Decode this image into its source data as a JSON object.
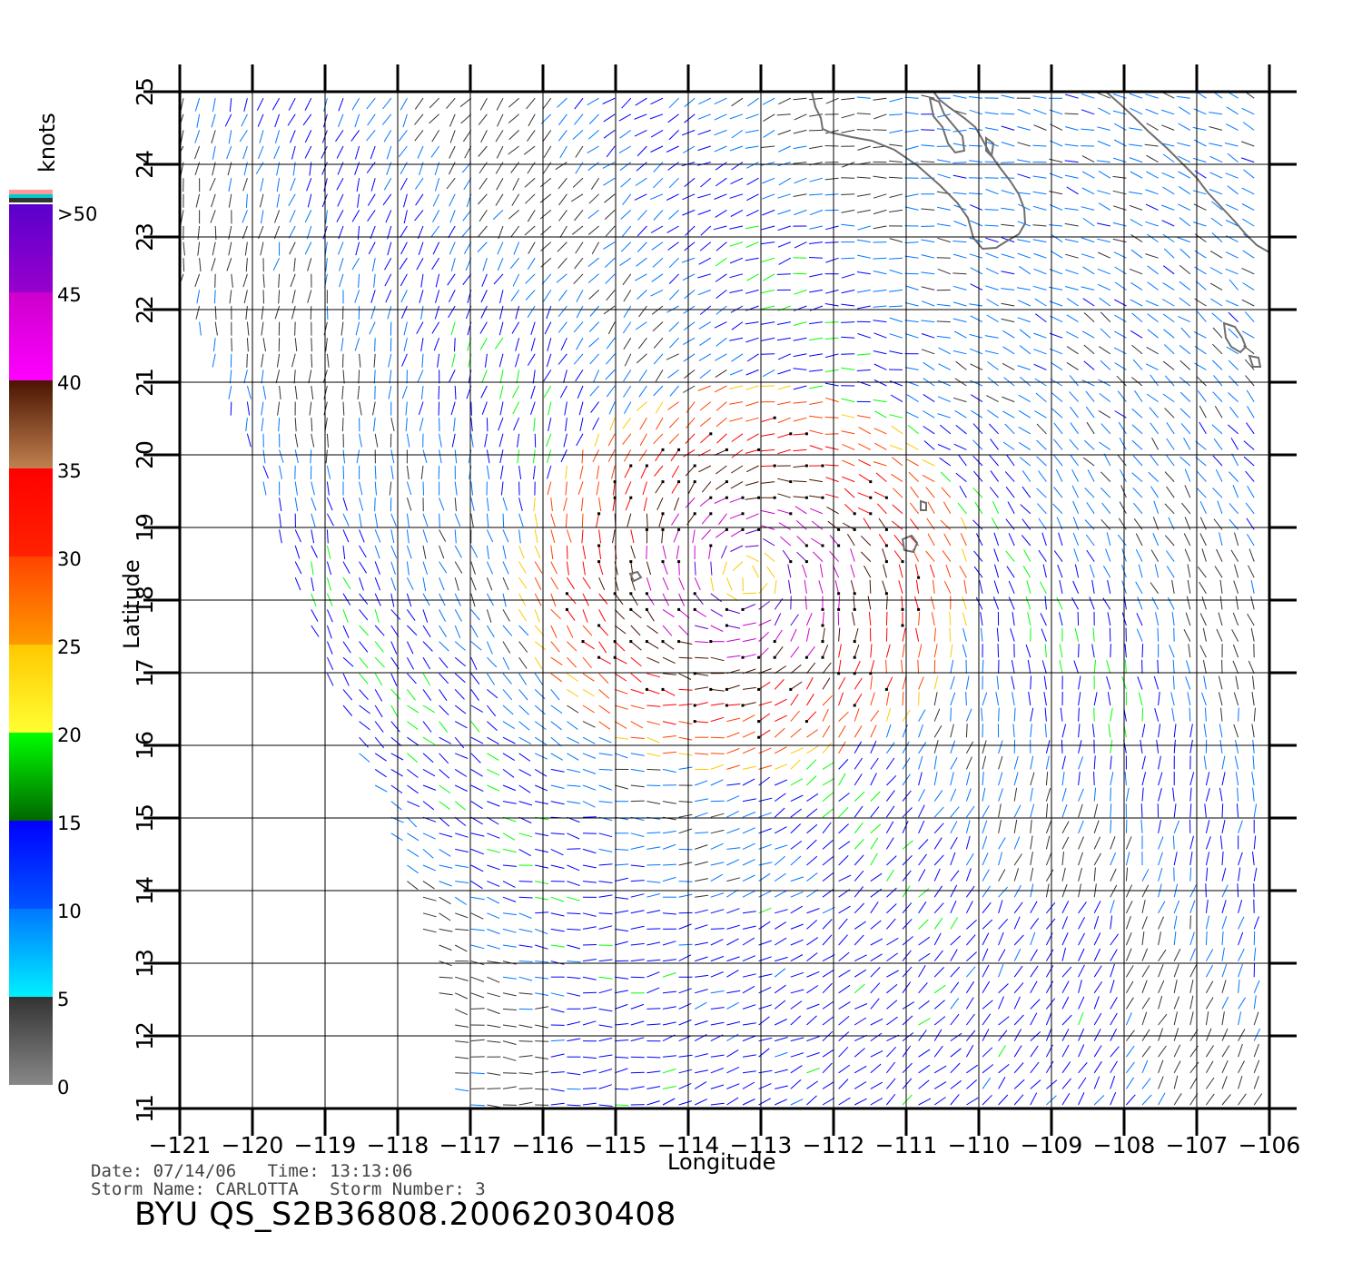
{
  "map": {
    "x_axis_title": "Longitude",
    "y_axis_title": "Latitude",
    "lon_range": [
      -121,
      -106
    ],
    "lat_range": [
      11,
      25
    ],
    "lon_ticks": [
      "−121",
      "−120",
      "−119",
      "−118",
      "−117",
      "−116",
      "−115",
      "−114",
      "−113",
      "−112",
      "−111",
      "−110",
      "−109",
      "−108",
      "−107",
      "−106"
    ],
    "lat_ticks": [
      "11",
      "12",
      "13",
      "14",
      "15",
      "16",
      "17",
      "18",
      "19",
      "20",
      "21",
      "22",
      "23",
      "24",
      "25"
    ],
    "coastline_color": "#6e6e6e",
    "grid_color": "#000000",
    "swath_west_edge": [
      [
        -121,
        22.5
      ],
      [
        -120,
        20
      ],
      [
        -119,
        17
      ],
      [
        -118,
        14.5
      ],
      [
        -117.5,
        13
      ],
      [
        -117.2,
        11
      ]
    ],
    "storm_center": [
      -113.2,
      18.3
    ],
    "vector_field_description_hidden": false
  },
  "color_scale": {
    "unit": "knots",
    "labels": [
      ">50",
      "45",
      "40",
      "35",
      "30",
      "25",
      "20",
      "15",
      "10",
      "5",
      "0"
    ],
    "stops": [
      {
        "from": 0,
        "to": 5,
        "top": "#333333",
        "bottom": "#888888"
      },
      {
        "from": 5,
        "to": 10,
        "top": "#0077ff",
        "bottom": "#00f0ff"
      },
      {
        "from": 10,
        "to": 15,
        "top": "#0000ff",
        "bottom": "#0055ff"
      },
      {
        "from": 15,
        "to": 20,
        "top": "#00ff00",
        "bottom": "#006600"
      },
      {
        "from": 20,
        "to": 25,
        "top": "#ffc800",
        "bottom": "#ffff33"
      },
      {
        "from": 25,
        "to": 30,
        "top": "#ff4400",
        "bottom": "#ff9900"
      },
      {
        "from": 30,
        "to": 35,
        "top": "#ff0000",
        "bottom": "#ff2200"
      },
      {
        "from": 35,
        "to": 40,
        "top": "#4a1400",
        "bottom": "#c08050"
      },
      {
        "from": 40,
        "to": 45,
        "top": "#cc00cc",
        "bottom": "#ff00ff"
      },
      {
        "from": 45,
        "to": 50,
        "top": "#5a00cc",
        "bottom": "#9900cc"
      }
    ]
  },
  "info": {
    "date_line": "Date: 07/14/06   Time: 13:13:06",
    "storm_line": "Storm Name: CARLOTTA   Storm Number: 3"
  },
  "footer_title": "BYU QS_S2B36808.20062030408"
}
